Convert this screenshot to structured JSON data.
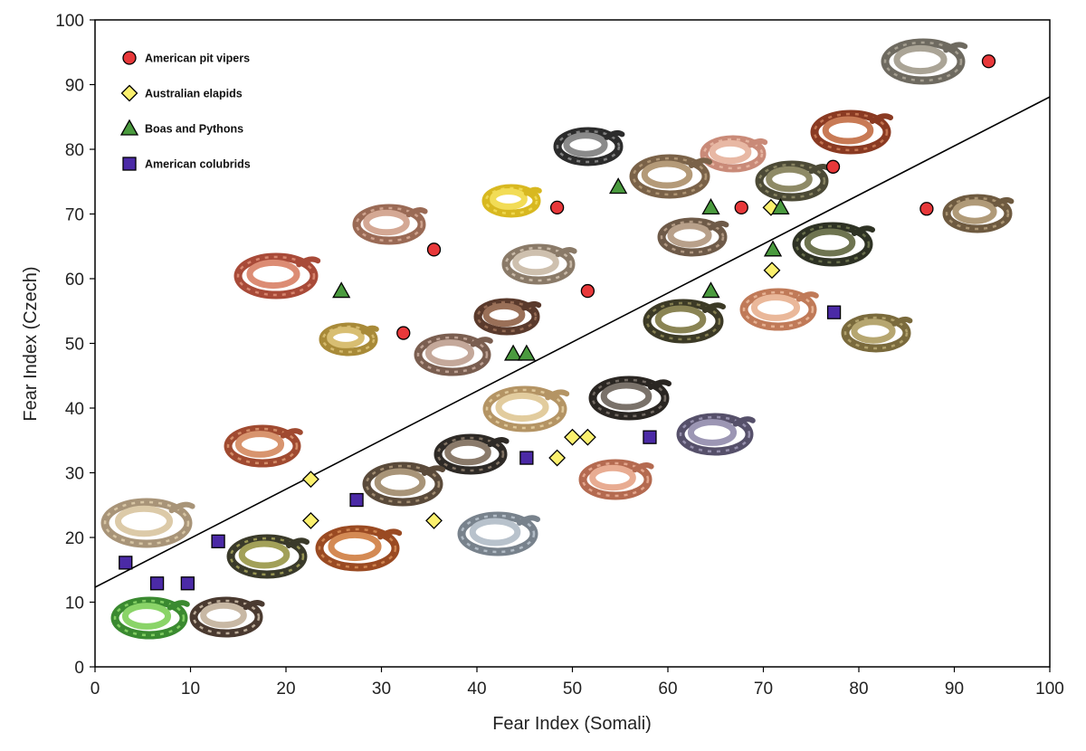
{
  "chart_data": {
    "type": "scatter",
    "title": "",
    "xlabel": "Fear Index (Somali)",
    "ylabel": "Fear Index (Czech)",
    "xlim": [
      0,
      100
    ],
    "ylim": [
      0,
      100
    ],
    "xticks": [
      "0",
      "10",
      "20",
      "30",
      "40",
      "50",
      "60",
      "70",
      "80",
      "90",
      "100"
    ],
    "yticks": [
      "0",
      "10",
      "20",
      "30",
      "40",
      "50",
      "60",
      "70",
      "80",
      "90",
      "100"
    ],
    "grid": false,
    "legend_position": "top-left",
    "trendline": {
      "intercept": 12.3,
      "slope": 0.758
    },
    "series": [
      {
        "name": "American pit vipers",
        "marker": "circle",
        "color": "#e8383a",
        "points": [
          [
            93.6,
            93.6
          ],
          [
            77.3,
            77.3
          ],
          [
            67.7,
            71.0
          ],
          [
            87.1,
            70.8
          ],
          [
            48.4,
            71.0
          ],
          [
            35.5,
            64.5
          ],
          [
            51.6,
            58.1
          ],
          [
            32.3,
            51.6
          ]
        ]
      },
      {
        "name": "Australian elapids",
        "marker": "diamond",
        "color": "#fbf06e",
        "points": [
          [
            70.8,
            71.0
          ],
          [
            70.9,
            61.3
          ],
          [
            22.6,
            29.0
          ],
          [
            22.6,
            22.6
          ],
          [
            35.5,
            22.6
          ],
          [
            48.4,
            32.3
          ],
          [
            50.0,
            35.5
          ],
          [
            51.6,
            35.5
          ]
        ]
      },
      {
        "name": "Boas and Pythons",
        "marker": "triangle",
        "color": "#4a9a3e",
        "points": [
          [
            54.8,
            74.2
          ],
          [
            64.5,
            71.0
          ],
          [
            71.8,
            71.0
          ],
          [
            71.0,
            64.5
          ],
          [
            64.5,
            58.1
          ],
          [
            25.8,
            58.1
          ],
          [
            43.8,
            48.4
          ],
          [
            45.2,
            48.4
          ]
        ]
      },
      {
        "name": "American colubrids",
        "marker": "square",
        "color": "#4b2aa6",
        "points": [
          [
            77.4,
            54.8
          ],
          [
            58.1,
            35.5
          ],
          [
            45.2,
            32.3
          ],
          [
            27.4,
            25.8
          ],
          [
            12.9,
            19.4
          ],
          [
            3.2,
            16.1
          ],
          [
            6.5,
            12.9
          ],
          [
            9.7,
            12.9
          ]
        ]
      }
    ]
  }
}
